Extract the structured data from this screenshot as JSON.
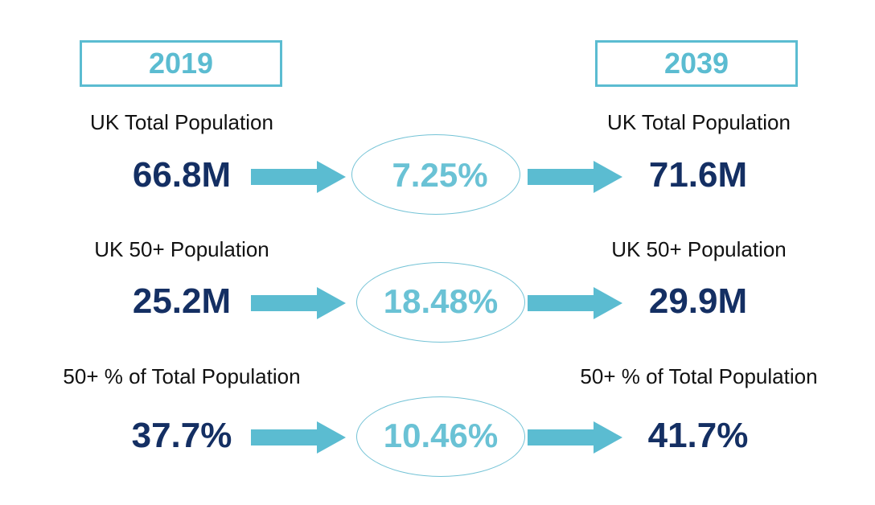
{
  "years": {
    "left": "2019",
    "right": "2039"
  },
  "rows": [
    {
      "label_left": "UK Total Population",
      "value_left": "66.8M",
      "change": "7.25%",
      "label_right": "UK Total Population",
      "value_right": "71.6M"
    },
    {
      "label_left": "UK 50+ Population",
      "value_left": "25.2M",
      "change": "18.48%",
      "label_right": "UK 50+ Population",
      "value_right": "29.9M"
    },
    {
      "label_left": "50+ % of Total Population",
      "value_left": "37.7%",
      "change": "10.46%",
      "label_right": "50+ % of Total Population",
      "value_right": "41.7%"
    }
  ],
  "colors": {
    "accent": "#5bbcd1",
    "value_text": "#142f63",
    "label_text": "#111111"
  },
  "icons": {
    "arrow": "right-arrow-icon",
    "ellipse": "ellipse-outline"
  }
}
